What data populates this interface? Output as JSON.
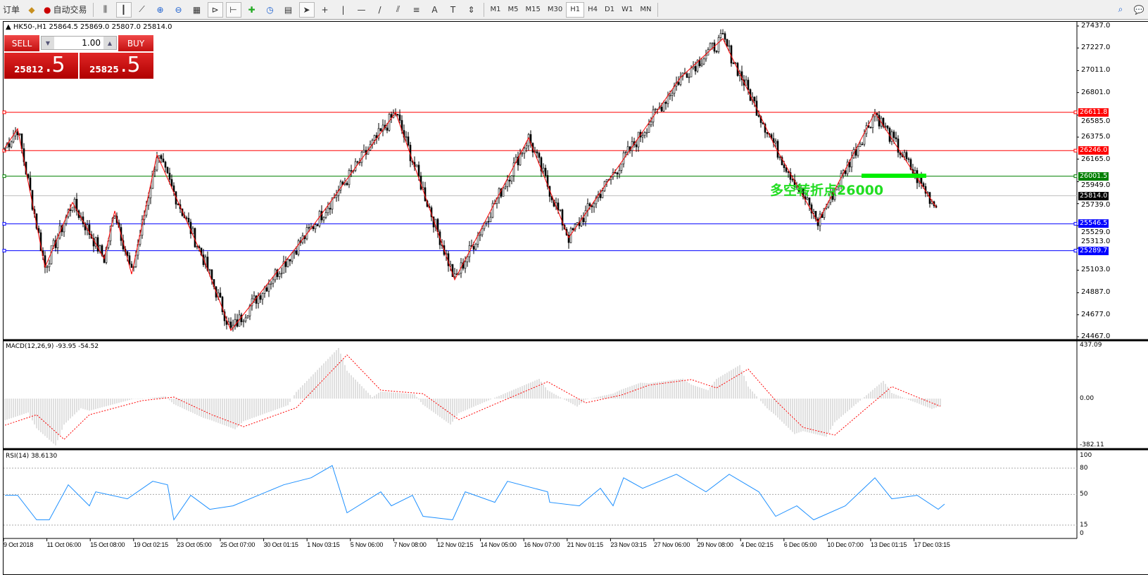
{
  "toolbar": {
    "left_items": [
      {
        "icon": "new-order-icon",
        "label": "订单"
      },
      {
        "icon": "expert-icon",
        "label": ""
      },
      {
        "icon": "auto-trading-icon",
        "label": "自动交易"
      }
    ],
    "chart_tools": [
      "bar-chart-icon",
      "candlestick-icon",
      "line-chart-icon",
      "zoom-in-icon",
      "zoom-out-icon",
      "tile-windows-icon",
      "auto-scroll-icon",
      "chart-shift-icon",
      "indicators-icon",
      "periods-icon",
      "templates-icon",
      "cursor-icon",
      "crosshair-icon",
      "vertical-line-icon",
      "horizontal-line-icon",
      "trendline-icon",
      "equidistant-channel-icon",
      "fibonacci-icon",
      "text-icon",
      "text-label-icon",
      "arrows-icon"
    ],
    "timeframes": [
      "M1",
      "M5",
      "M15",
      "M30",
      "H1",
      "H4",
      "D1",
      "W1",
      "MN"
    ],
    "active_timeframe": "H1",
    "right_icons": [
      "search-icon",
      "chat-icon"
    ]
  },
  "chart": {
    "symbol_line": "HK50-,H1  25864.5 25869.0 25807.0 25814.0",
    "one_click": {
      "sell_label": "SELL",
      "buy_label": "BUY",
      "lot": "1.00",
      "sell_main": "25812",
      "sell_frac": ".5",
      "buy_main": "25825",
      "buy_frac": ".5"
    },
    "price_axis": [
      "27437.0",
      "27227.0",
      "27011.0",
      "26801.0",
      "26585.0",
      "26375.0",
      "26165.0",
      "25949.0",
      "25739.0",
      "25529.0",
      "25313.0",
      "25103.0",
      "24887.0",
      "24677.0",
      "24467.0"
    ],
    "horizontal_lines": [
      {
        "price": "26611.8",
        "color": "#ff0000"
      },
      {
        "price": "26246.0",
        "color": "#ff0000"
      },
      {
        "price": "26001.5",
        "color": "#008000"
      },
      {
        "price": "25546.5",
        "color": "#0000ff"
      },
      {
        "price": "25289.7",
        "color": "#0000ff"
      }
    ],
    "current_price": "25814.0",
    "annotation": "多空转折点26000",
    "annotation_color": "#22dd22",
    "bull_bear_bar_color": "#00ee00",
    "zigzag_color": "#ff0000",
    "zigzag_pivots": [
      [
        0,
        26274
      ],
      [
        6,
        26456
      ],
      [
        19,
        25132
      ],
      [
        32,
        25750
      ],
      [
        47,
        25213
      ],
      [
        52,
        25670
      ],
      [
        60,
        25065
      ],
      [
        72,
        26207
      ],
      [
        94,
        25213
      ],
      [
        107,
        24527
      ],
      [
        145,
        25502
      ],
      [
        185,
        26610
      ],
      [
        213,
        25011
      ],
      [
        248,
        26368
      ],
      [
        267,
        25414
      ],
      [
        320,
        26946
      ],
      [
        340,
        27316
      ],
      [
        365,
        26274
      ],
      [
        385,
        25562
      ],
      [
        412,
        26610
      ],
      [
        441,
        25703
      ]
    ]
  },
  "macd": {
    "title": "MACD(12,26,9) -93.95 -54.52",
    "axis": [
      "437.09",
      "0.00",
      "-382.11"
    ],
    "signal": [
      [
        0,
        -219
      ],
      [
        15,
        -133
      ],
      [
        28,
        -335
      ],
      [
        40,
        -133
      ],
      [
        65,
        -17
      ],
      [
        80,
        12
      ],
      [
        98,
        -133
      ],
      [
        113,
        -231
      ],
      [
        138,
        -75
      ],
      [
        162,
        358
      ],
      [
        178,
        69
      ],
      [
        198,
        40
      ],
      [
        215,
        -173
      ],
      [
        232,
        -46
      ],
      [
        257,
        138
      ],
      [
        275,
        -35
      ],
      [
        292,
        29
      ],
      [
        305,
        110
      ],
      [
        325,
        156
      ],
      [
        337,
        87
      ],
      [
        352,
        242
      ],
      [
        365,
        -17
      ],
      [
        378,
        -237
      ],
      [
        393,
        -300
      ],
      [
        420,
        98
      ],
      [
        432,
        12
      ],
      [
        443,
        -63
      ]
    ]
  },
  "rsi": {
    "title": "RSI(14) 38.6130",
    "axis": [
      "100",
      "80",
      "50",
      "15",
      "0"
    ],
    "levels": [
      80,
      50,
      15
    ],
    "values": [
      [
        0,
        49
      ],
      [
        6,
        49
      ],
      [
        15,
        21
      ],
      [
        21,
        21
      ],
      [
        30,
        61
      ],
      [
        40,
        37
      ],
      [
        43,
        53
      ],
      [
        58,
        45
      ],
      [
        70,
        65
      ],
      [
        77,
        61
      ],
      [
        80,
        21
      ],
      [
        88,
        49
      ],
      [
        97,
        33
      ],
      [
        108,
        37
      ],
      [
        132,
        61
      ],
      [
        145,
        69
      ],
      [
        155,
        83
      ],
      [
        162,
        29
      ],
      [
        178,
        53
      ],
      [
        183,
        37
      ],
      [
        193,
        49
      ],
      [
        198,
        25
      ],
      [
        212,
        21
      ],
      [
        218,
        53
      ],
      [
        232,
        41
      ],
      [
        238,
        65
      ],
      [
        257,
        53
      ],
      [
        258,
        41
      ],
      [
        272,
        37
      ],
      [
        282,
        57
      ],
      [
        288,
        37
      ],
      [
        293,
        69
      ],
      [
        302,
        57
      ],
      [
        318,
        73
      ],
      [
        332,
        53
      ],
      [
        343,
        73
      ],
      [
        357,
        53
      ],
      [
        365,
        25
      ],
      [
        375,
        37
      ],
      [
        383,
        21
      ],
      [
        398,
        37
      ],
      [
        412,
        69
      ],
      [
        420,
        45
      ],
      [
        432,
        49
      ],
      [
        442,
        33
      ],
      [
        445,
        39
      ]
    ]
  },
  "time_axis": [
    "9 Oct 2018",
    "11 Oct 06:00",
    "15 Oct 08:00",
    "19 Oct 02:15",
    "23 Oct 05:00",
    "25 Oct 07:00",
    "30 Oct 01:15",
    "1 Nov 03:15",
    "5 Nov 06:00",
    "7 Nov 08:00",
    "12 Nov 02:15",
    "14 Nov 05:00",
    "16 Nov 07:00",
    "21 Nov 01:15",
    "23 Nov 03:15",
    "27 Nov 06:00",
    "29 Nov 08:00",
    "4 Dec 02:15",
    "6 Dec 05:00",
    "10 Dec 07:00",
    "13 Dec 01:15",
    "17 Dec 03:15"
  ]
}
